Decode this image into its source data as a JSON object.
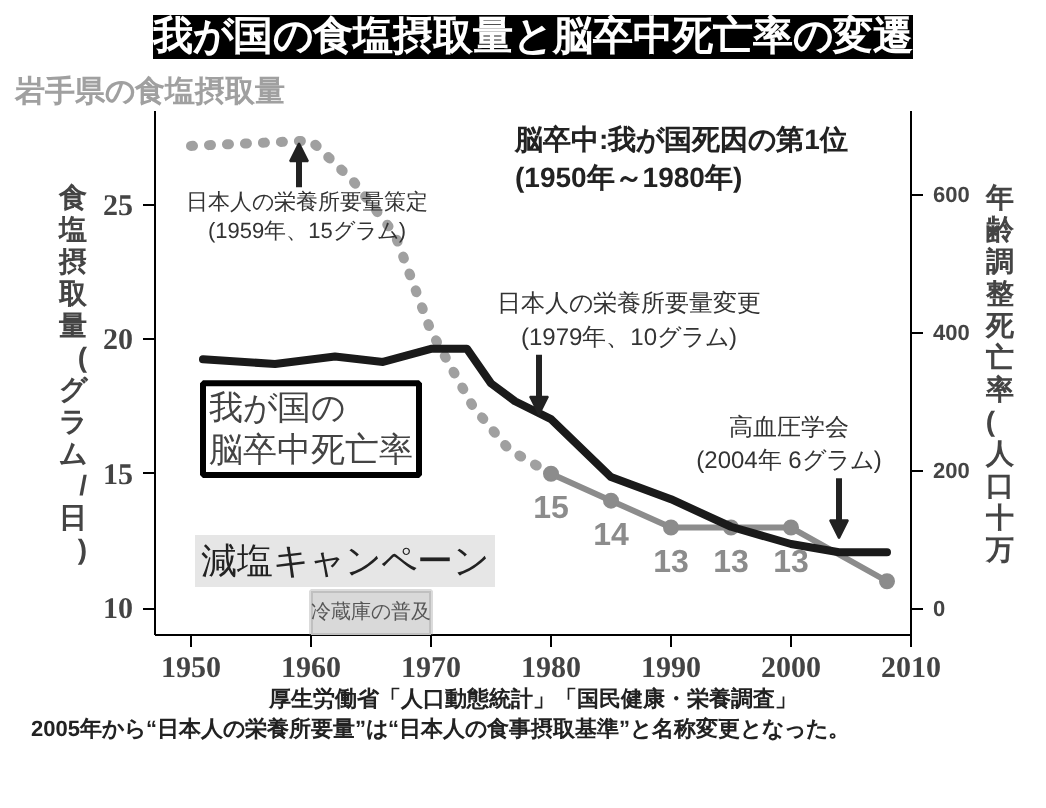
{
  "chart_data": {
    "type": "line",
    "title": "我が国の食塩摂取量と脳卒中死亡率の変遷",
    "ylabel": "食塩摂取量(グラム/日)",
    "y2label": "年齢調整死亡率(人口十万",
    "xlim": [
      1947,
      2010
    ],
    "xticks": [
      1950,
      1960,
      1970,
      1980,
      1990,
      2000,
      2010
    ],
    "ylim": [
      9,
      28.5
    ],
    "yticks": [
      10,
      15,
      20,
      25
    ],
    "y2lim": [
      -39,
      721
    ],
    "y2ticks": [
      0,
      200,
      400,
      600
    ],
    "series": [
      {
        "name": "岩手県の食塩摂取量",
        "color": "#a0a0a0",
        "line_style": "dotted",
        "x": [
          1950,
          1960,
          1963.5,
          1967,
          1970,
          1973.5,
          1976.5,
          1980
        ],
        "values": [
          27.2,
          27.4,
          25.9,
          23.9,
          20.3,
          17.5,
          15.9,
          15
        ]
      },
      {
        "color": "#8c8c8c",
        "marker": "circle",
        "x": [
          1980,
          1985,
          1990,
          1995,
          2000,
          2008
        ],
        "values": [
          15,
          14,
          13,
          13,
          13,
          11
        ],
        "value_labels": [
          "15",
          "14",
          "13",
          "13",
          "13",
          null
        ]
      },
      {
        "name": "我が国の脳卒中死亡率",
        "color": "#1a1a1a",
        "axis": "y2",
        "x": [
          1951,
          1957,
          1962,
          1966,
          1970,
          1973,
          1975,
          1977,
          1980,
          1985,
          1990,
          1995,
          2000,
          2004,
          2008
        ],
        "values": [
          361,
          354,
          365,
          357,
          376,
          376,
          326,
          300,
          274,
          190,
          158,
          118,
          93,
          81,
          81
        ]
      }
    ],
    "bands": [
      {
        "axis": "x",
        "from": 1960,
        "to": 1970,
        "label": "冷蔵庫の普及",
        "color": "#d9d9d9"
      }
    ],
    "annotations": [
      "脳卒中:我が国死因の第1位\n(1950年～1980年)",
      {
        "text": "日本人の栄養所要量策定\n(1959年、15グラム)",
        "x": 1959,
        "y": 27.3
      },
      {
        "text": "日本人の栄養所要量変更\n(1979年、10グラム)",
        "x": 1979,
        "y": 17.2
      },
      {
        "text": "高血圧学会\n(2004年 6グラム)",
        "x": 2004,
        "y": 12.6
      },
      "減塩キャンペーン",
      "厚生労働省「人口動態統計」「国民健康・栄養調査」",
      "2005年から“日本人の栄養所要量”は“日本人の食事摂取基準”と名称変更となった。"
    ]
  }
}
